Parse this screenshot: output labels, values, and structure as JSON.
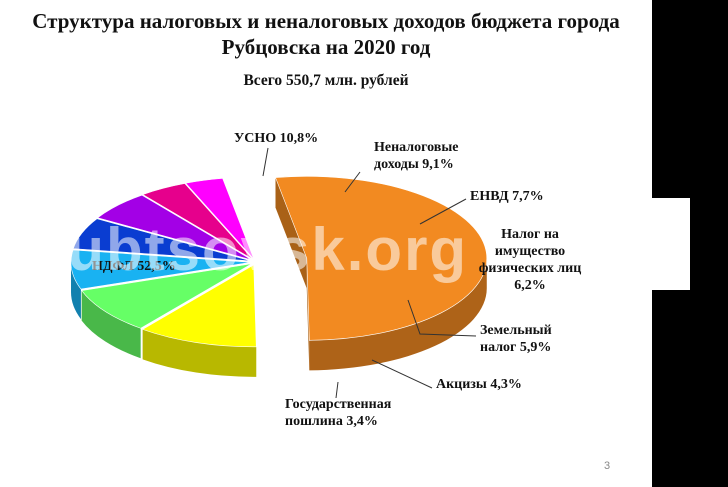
{
  "slide": {
    "title_line1": "Структура налоговых и неналоговых доходов бюджета города",
    "title_line2": "Рубцовска на 2020 год",
    "subtitle": "Всего 550,7 млн. рублей",
    "page_number": "3",
    "watermark": "rubtsovsk.org"
  },
  "chart_data": {
    "type": "pie",
    "title": "Структура налоговых и неналоговых доходов бюджета города Рубцовска на 2020 год",
    "subtitle": "Всего 550,7 млн. рублей",
    "unit": "%",
    "slices": [
      {
        "label": "НДФЛ 52,5%",
        "name": "НДФЛ",
        "value": 52.5,
        "color": "#F28A21",
        "exploded": true
      },
      {
        "label": "УСНО 10,8%",
        "name": "УСНО",
        "value": 10.8,
        "color": "#FFFF00"
      },
      {
        "label": "Неналоговые доходы 9,1%",
        "name": "Неналоговые доходы",
        "value": 9.1,
        "color": "#66FF66"
      },
      {
        "label": "ЕНВД 7,7%",
        "name": "ЕНВД",
        "value": 7.7,
        "color": "#19B2F2"
      },
      {
        "label": "Налог на имущество физических лиц 6,2%",
        "name": "Налог на имущество физических лиц",
        "value": 6.2,
        "color": "#0A3DD1"
      },
      {
        "label": "Земельный налог 5,9%",
        "name": "Земельный налог",
        "value": 5.9,
        "color": "#A300E6"
      },
      {
        "label": "Акцизы 4,3%",
        "name": "Акцизы",
        "value": 4.3,
        "color": "#E6008C"
      },
      {
        "label": "Государственная пошлина 3,4%",
        "name": "Государственная пошлина",
        "value": 3.4,
        "color": "#FF00FF"
      }
    ]
  }
}
